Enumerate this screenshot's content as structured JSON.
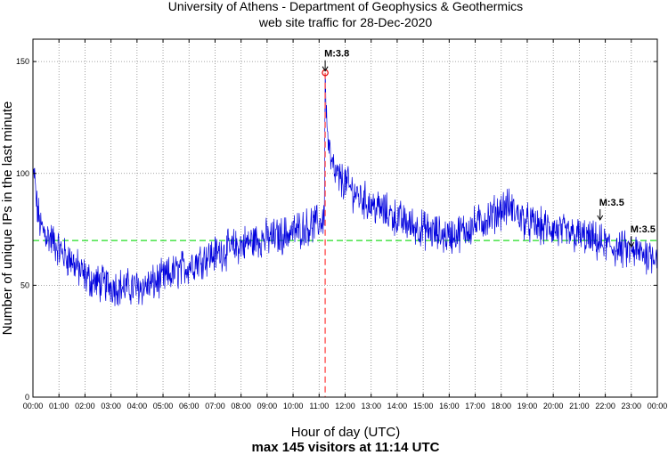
{
  "chart_data": {
    "type": "line",
    "title": "University of Athens - Department of Geophysics & Geothermics",
    "subtitle": "web site traffic for 28-Dec-2020",
    "xlabel": "Hour of day (UTC)",
    "ylabel": "Number of unique IPs in the last minute",
    "caption": "max 145 visitors at 11:14 UTC",
    "xlim": [
      0,
      24
    ],
    "ylim": [
      0,
      160
    ],
    "x_ticks": [
      "00:00",
      "01:00",
      "02:00",
      "03:00",
      "04:00",
      "05:00",
      "06:00",
      "07:00",
      "08:00",
      "09:00",
      "10:00",
      "11:00",
      "12:00",
      "13:00",
      "14:00",
      "15:00",
      "16:00",
      "17:00",
      "18:00",
      "19:00",
      "20:00",
      "21:00",
      "22:00",
      "23:00",
      "00:00"
    ],
    "y_ticks": [
      0,
      50,
      100,
      150
    ],
    "grid": true,
    "colors": {
      "series": "#0000dd",
      "mean": "#22dd22",
      "event": "#ff6a6a",
      "max_marker": "#dd0000",
      "grid": "#888888"
    },
    "mean_line": {
      "value": 70,
      "label": ""
    },
    "max_marker": {
      "hour": 11.233,
      "value": 145
    },
    "series": [
      {
        "name": "visitors",
        "hours": [
          0,
          0.05,
          0.15,
          0.3,
          0.5,
          0.75,
          1.0,
          1.25,
          1.5,
          1.75,
          2.0,
          2.25,
          2.5,
          3.0,
          3.5,
          4.0,
          4.5,
          5.0,
          5.5,
          6.0,
          6.5,
          7.0,
          7.5,
          8.0,
          8.5,
          9.0,
          9.5,
          10.0,
          10.5,
          11.0,
          11.2,
          11.233,
          11.3,
          11.45,
          11.6,
          11.8,
          12.0,
          12.3,
          12.6,
          13.0,
          13.5,
          14.0,
          14.5,
          15.0,
          15.5,
          16.0,
          16.5,
          17.0,
          17.5,
          18.0,
          18.3,
          18.6,
          19.0,
          19.5,
          20.0,
          20.5,
          21.0,
          21.5,
          22.0,
          22.5,
          23.0,
          23.5,
          24.0
        ],
        "values": [
          95,
          100,
          85,
          76,
          73,
          70,
          66,
          63,
          61,
          57,
          54,
          52,
          51,
          50,
          49,
          49,
          50,
          53,
          56,
          59,
          62,
          64,
          66,
          68,
          70,
          71,
          72,
          74,
          76,
          78,
          80,
          145,
          120,
          105,
          100,
          97,
          96,
          92,
          89,
          86,
          83,
          80,
          77,
          75,
          73,
          72,
          74,
          77,
          80,
          84,
          85,
          82,
          78,
          76,
          75,
          73,
          72,
          70,
          68,
          66,
          65,
          64,
          64
        ]
      }
    ],
    "events": [
      {
        "label": "M:3.8",
        "hour": 11.233,
        "line": true
      },
      {
        "label": "M:3.5",
        "hour": 21.8,
        "line": false
      },
      {
        "label": "M:3.5",
        "hour": 23.0,
        "line": false
      }
    ]
  }
}
